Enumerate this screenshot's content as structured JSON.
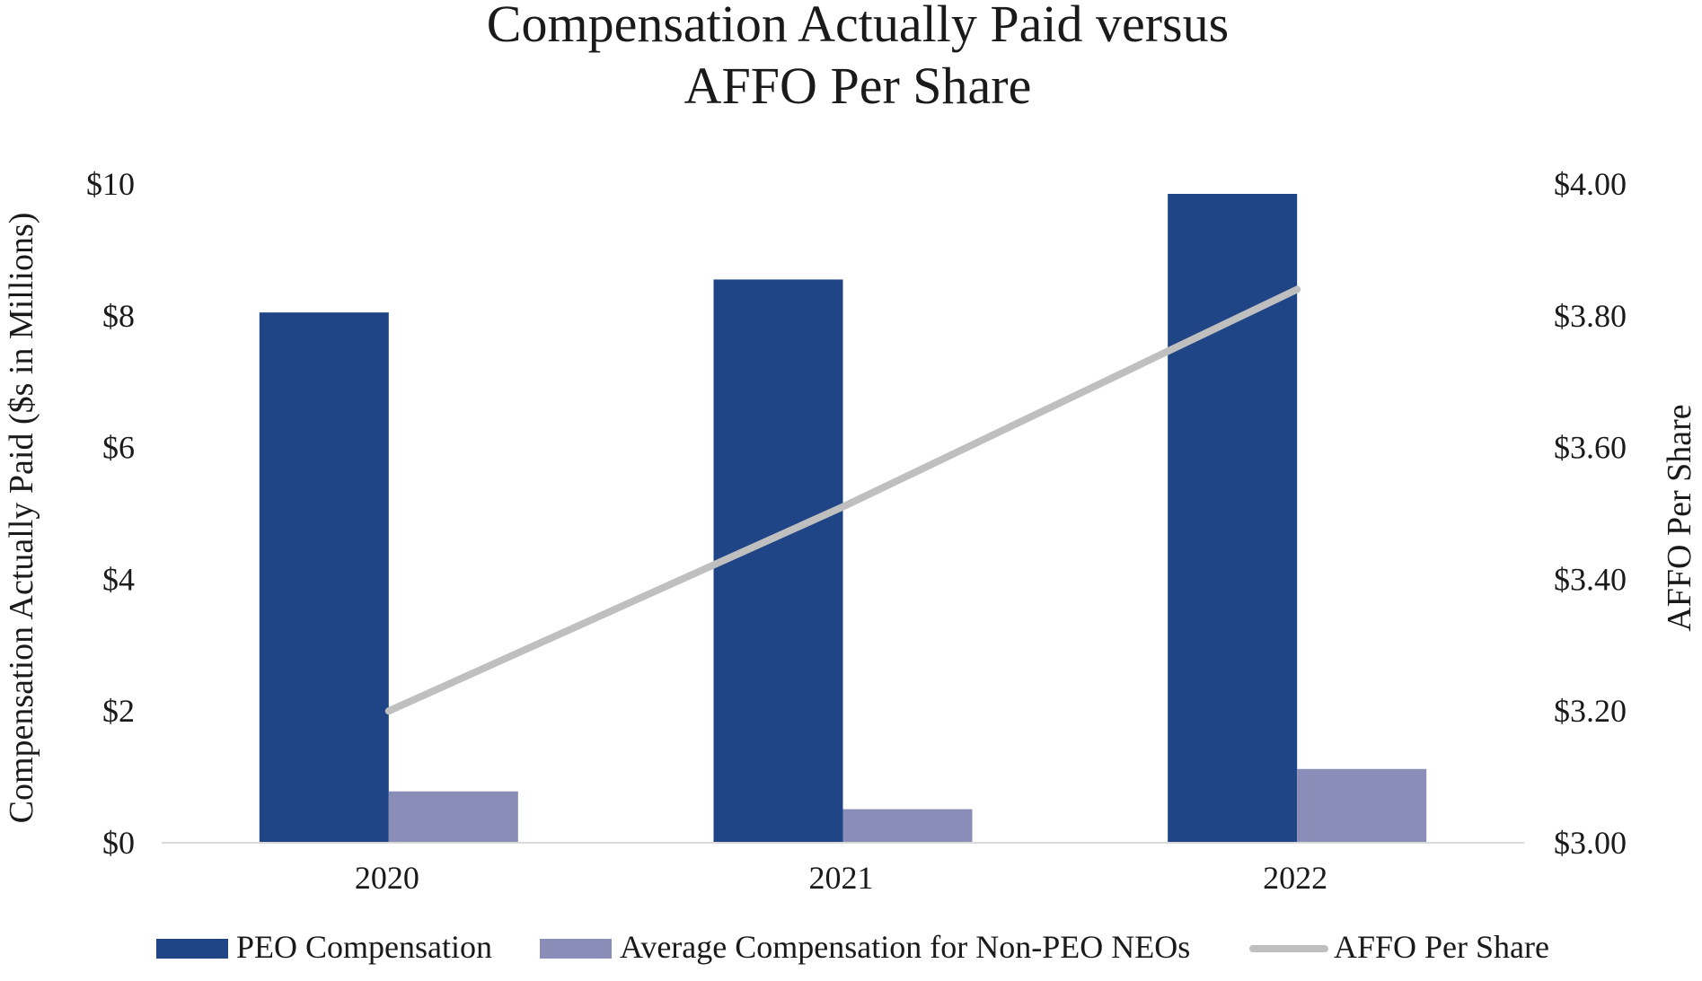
{
  "chart_data": {
    "type": "bar",
    "title_lines": [
      "Compensation Actually Paid versus",
      "AFFO Per Share"
    ],
    "categories": [
      "2020",
      "2021",
      "2022"
    ],
    "series": [
      {
        "name": "PEO Compensation",
        "kind": "bar",
        "axis": "left",
        "color": "#1f4587",
        "values": [
          8.05,
          8.55,
          9.85
        ]
      },
      {
        "name": "Average Compensation for Non-PEO NEOs",
        "kind": "bar",
        "axis": "left",
        "color": "#8a8db8",
        "values": [
          0.78,
          0.51,
          1.12
        ]
      },
      {
        "name": "AFFO Per Share",
        "kind": "line",
        "axis": "right",
        "color": "#bfbfbf",
        "values": [
          3.2,
          3.51,
          3.84
        ]
      }
    ],
    "ylabel": "Compensation Actually Paid ($s in Millions)",
    "y2label": "AFFO Per Share",
    "ylim": [
      0,
      10
    ],
    "y2lim": [
      3.0,
      4.0
    ],
    "yticks": [
      {
        "value": 0,
        "label": "$0"
      },
      {
        "value": 2,
        "label": "$2"
      },
      {
        "value": 4,
        "label": "$4"
      },
      {
        "value": 6,
        "label": "$6"
      },
      {
        "value": 8,
        "label": "$8"
      },
      {
        "value": 10,
        "label": "$10"
      }
    ],
    "y2ticks": [
      {
        "value": 3.0,
        "label": "$3.00"
      },
      {
        "value": 3.2,
        "label": "$3.20"
      },
      {
        "value": 3.4,
        "label": "$3.40"
      },
      {
        "value": 3.6,
        "label": "$3.60"
      },
      {
        "value": 3.8,
        "label": "$3.80"
      },
      {
        "value": 4.0,
        "label": "$4.00"
      }
    ],
    "grid": false,
    "legend_position": "bottom"
  }
}
